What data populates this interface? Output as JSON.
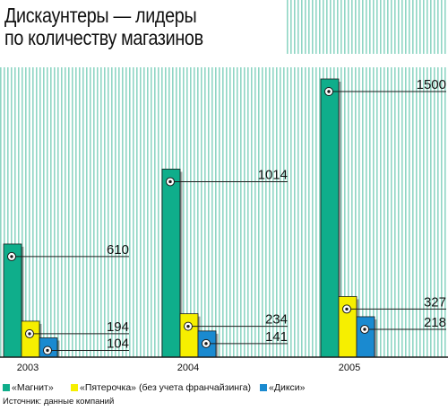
{
  "title_line1": "Дискаунтеры — лидеры",
  "title_line2": "по количеству магазинов",
  "source": "Источник: данные компаний",
  "colors": {
    "magnit": "#0fae8b",
    "pyaterochka": "#f6ef00",
    "diksi": "#1a8ad0",
    "hatch": "#8fd6c4",
    "axis": "#1a1a1a"
  },
  "chart_data": {
    "type": "bar",
    "categories": [
      "2003",
      "2004",
      "2005"
    ],
    "series": [
      {
        "name": "«Магнит»",
        "values": [
          610,
          1014,
          1500
        ]
      },
      {
        "name": "«Пятерочка» (без учета франчайзинга)",
        "values": [
          194,
          234,
          327
        ]
      },
      {
        "name": "«Дикси»",
        "values": [
          104,
          141,
          218
        ]
      }
    ],
    "ylim": [
      0,
      1580
    ],
    "legend_position": "bottom"
  }
}
